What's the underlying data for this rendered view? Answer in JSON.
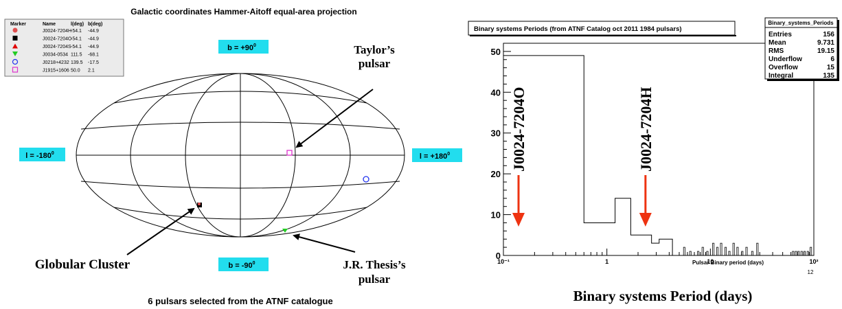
{
  "left_panel": {
    "title": "Galactic coordinates  Hammer-Aitoff  equal-area projection",
    "caption": "6 pulsars selected from the ATNF catalogue",
    "legend": {
      "headers": [
        "Marker",
        "Name",
        "l(deg)",
        "b(deg)"
      ],
      "rows": [
        {
          "marker": "circle-filled",
          "color": "#e05050",
          "name": "J0024-7204H",
          "l": "-54.1",
          "b": "-44.9"
        },
        {
          "marker": "square-filled",
          "color": "#000000",
          "name": "J0024-7204O",
          "l": "-54.1",
          "b": "-44.9"
        },
        {
          "marker": "triangle-up",
          "color": "#e00000",
          "name": "J0024-7204S",
          "l": "-54.1",
          "b": "-44.9"
        },
        {
          "marker": "triangle-down",
          "color": "#22cc22",
          "name": "J0034-0534",
          "l": "111.5",
          "b": "-68.1"
        },
        {
          "marker": "circle-open",
          "color": "#2233ee",
          "name": "J0218+4232",
          "l": "139.5",
          "b": "-17.5"
        },
        {
          "marker": "square-open",
          "color": "#dd33cc",
          "name": "J1915+1606",
          "l": "50.0",
          "b": "2.1"
        }
      ]
    },
    "axis_boxes": {
      "b_top": "b = +90",
      "b_bottom": "b = -90",
      "l_left": "l = -180",
      "l_right": "l = +180",
      "degree": "0",
      "box_color": "#22ddee"
    },
    "annotations": {
      "taylor_line1": "Taylor’s",
      "taylor_line2": "pulsar",
      "globular": "Globular Cluster",
      "thesis_line1": "J.R. Thesis’s",
      "thesis_line2": "pulsar"
    }
  },
  "chart_data": {
    "type": "bar",
    "title": "Binary systems Periods (from ATNF Catalog oct 2011 1984 pulsars)",
    "xlabel": "Pulsar Binary period (days)",
    "caption": "Binary systems Period (days)",
    "x_scale": "log",
    "xlim": [
      0.1,
      100
    ],
    "ylim": [
      0,
      52
    ],
    "y_ticks": [
      0,
      10,
      20,
      30,
      40,
      50
    ],
    "x_tick_labels": [
      "10⁻¹",
      "1",
      "10",
      "10²"
    ],
    "corner_label": "12",
    "histogram_steps": [
      {
        "x0": 0.1,
        "x1": 0.6,
        "count": 49
      },
      {
        "x0": 0.6,
        "x1": 1.2,
        "count": 8
      },
      {
        "x0": 1.2,
        "x1": 1.7,
        "count": 14
      },
      {
        "x0": 1.7,
        "x1": 2.7,
        "count": 5
      },
      {
        "x0": 2.7,
        "x1": 3.2,
        "count": 3
      },
      {
        "x0": 3.2,
        "x1": 4.3,
        "count": 4
      },
      {
        "x0": 4.3,
        "x1": 100,
        "count": 0
      }
    ],
    "spikes": [
      {
        "x": 5.5,
        "count": 2
      },
      {
        "x": 6.3,
        "count": 1
      },
      {
        "x": 7.5,
        "count": 1
      },
      {
        "x": 8.3,
        "count": 2
      },
      {
        "x": 9.2,
        "count": 1
      },
      {
        "x": 10.5,
        "count": 3
      },
      {
        "x": 11.5,
        "count": 2
      },
      {
        "x": 12.5,
        "count": 3
      },
      {
        "x": 13.8,
        "count": 2
      },
      {
        "x": 15.0,
        "count": 1
      },
      {
        "x": 16.5,
        "count": 3
      },
      {
        "x": 18.0,
        "count": 2
      },
      {
        "x": 20.0,
        "count": 1
      },
      {
        "x": 22.0,
        "count": 2
      },
      {
        "x": 25.0,
        "count": 1
      },
      {
        "x": 28.0,
        "count": 3
      },
      {
        "x": 62.0,
        "count": 1
      },
      {
        "x": 66.0,
        "count": 1
      },
      {
        "x": 70.0,
        "count": 1
      },
      {
        "x": 75.0,
        "count": 1
      },
      {
        "x": 80.0,
        "count": 1
      },
      {
        "x": 86.0,
        "count": 1
      },
      {
        "x": 92.0,
        "count": 2
      }
    ],
    "stats_box": {
      "title": "Binary_systems_Periods",
      "rows": [
        {
          "label": "Entries",
          "value": "156"
        },
        {
          "label": "Mean",
          "value": "9.731"
        },
        {
          "label": "RMS",
          "value": "19.15"
        },
        {
          "label": "Underflow",
          "value": "6"
        },
        {
          "label": "Overflow",
          "value": "15"
        },
        {
          "label": "Integral",
          "value": "135"
        }
      ]
    },
    "markers": [
      {
        "label": "J0024-7204O",
        "x": 0.14,
        "arrow_color": "#ee3311"
      },
      {
        "label": "J0024-7204H",
        "x": 2.36,
        "arrow_color": "#ee3311"
      }
    ]
  }
}
